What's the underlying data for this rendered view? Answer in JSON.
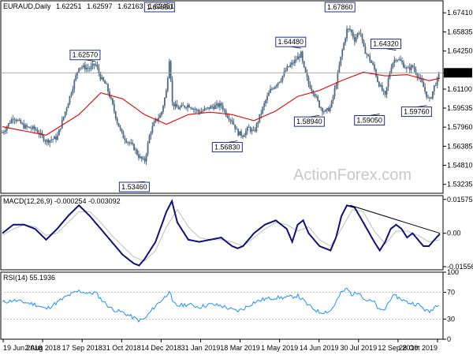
{
  "title": {
    "symbol": "EURAUD,Daily",
    "open": "1.62251",
    "high": "1.62597",
    "low": "1.62163",
    "close": "1.62451"
  },
  "watermark": "ActionForex.com",
  "colors": {
    "candle": "#4d6b86",
    "ema": "#e60000",
    "macd": "#10107a",
    "signal": "#bfbfbf",
    "rsi": "#1e90ff",
    "pricebox": "#000000"
  },
  "chart_data": [
    {
      "type": "candlestick",
      "panel": "price",
      "title": "EURAUD,Daily 1.62251 1.62597 1.62163 1.62451",
      "ylim": [
        1.525,
        1.684
      ],
      "y_ticks": [
        "1.67410",
        "1.65835",
        "1.64250",
        "1.62451",
        "1.61100",
        "1.59535",
        "1.57960",
        "1.56385",
        "1.54810",
        "1.53235"
      ],
      "x_ticks": [
        "19 Jun 2018",
        "2 Aug 2018",
        "17 Sep 2018",
        "31 Oct 2018",
        "14 Dec 2018",
        "31 Jan 2019",
        "18 Mar 2019",
        "1 May 2019",
        "14 Jun 2019",
        "30 Jul 2019",
        "12 Sep 2019",
        "28 Oct 2019"
      ],
      "last_price": "1.62451",
      "price_anchors": [
        [
          0,
          1.575
        ],
        [
          10,
          1.588
        ],
        [
          20,
          1.58
        ],
        [
          30,
          1.578
        ],
        [
          40,
          1.568
        ],
        [
          50,
          1.571
        ],
        [
          60,
          1.6
        ],
        [
          70,
          1.63
        ],
        [
          80,
          1.628
        ],
        [
          85,
          1.632
        ],
        [
          90,
          1.62
        ],
        [
          95,
          1.614
        ],
        [
          100,
          1.6
        ],
        [
          105,
          1.584
        ],
        [
          110,
          1.572
        ],
        [
          120,
          1.563
        ],
        [
          125,
          1.555
        ],
        [
          130,
          1.551
        ],
        [
          135,
          1.575
        ],
        [
          140,
          1.585
        ],
        [
          145,
          1.59
        ],
        [
          150,
          1.61
        ],
        [
          153,
          1.64
        ],
        [
          155,
          1.6
        ],
        [
          160,
          1.595
        ],
        [
          170,
          1.598
        ],
        [
          180,
          1.592
        ],
        [
          190,
          1.596
        ],
        [
          200,
          1.598
        ],
        [
          205,
          1.59
        ],
        [
          210,
          1.585
        ],
        [
          215,
          1.575
        ],
        [
          220,
          1.573
        ],
        [
          225,
          1.579
        ],
        [
          230,
          1.575
        ],
        [
          235,
          1.588
        ],
        [
          240,
          1.6
        ],
        [
          245,
          1.61
        ],
        [
          250,
          1.615
        ],
        [
          255,
          1.62
        ],
        [
          260,
          1.628
        ],
        [
          265,
          1.632
        ],
        [
          270,
          1.637
        ],
        [
          273,
          1.64
        ],
        [
          275,
          1.63
        ],
        [
          280,
          1.615
        ],
        [
          285,
          1.608
        ],
        [
          290,
          1.597
        ],
        [
          295,
          1.592
        ],
        [
          300,
          1.596
        ],
        [
          305,
          1.615
        ],
        [
          310,
          1.64
        ],
        [
          315,
          1.66
        ],
        [
          318,
          1.66
        ],
        [
          322,
          1.652
        ],
        [
          327,
          1.66
        ],
        [
          330,
          1.645
        ],
        [
          335,
          1.637
        ],
        [
          340,
          1.628
        ],
        [
          343,
          1.618
        ],
        [
          346,
          1.612
        ],
        [
          350,
          1.605
        ],
        [
          353,
          1.62
        ],
        [
          356,
          1.632
        ],
        [
          360,
          1.637
        ],
        [
          365,
          1.633
        ],
        [
          370,
          1.627
        ],
        [
          375,
          1.63
        ],
        [
          380,
          1.622
        ],
        [
          384,
          1.615
        ],
        [
          387,
          1.608
        ],
        [
          390,
          1.601
        ],
        [
          392,
          1.605
        ],
        [
          395,
          1.614
        ],
        [
          398,
          1.619
        ],
        [
          400,
          1.625
        ]
      ],
      "ema_anchors": [
        [
          0,
          1.58
        ],
        [
          40,
          1.573
        ],
        [
          70,
          1.59
        ],
        [
          90,
          1.608
        ],
        [
          110,
          1.603
        ],
        [
          130,
          1.59
        ],
        [
          150,
          1.582
        ],
        [
          170,
          1.59
        ],
        [
          190,
          1.592
        ],
        [
          210,
          1.59
        ],
        [
          230,
          1.585
        ],
        [
          250,
          1.593
        ],
        [
          270,
          1.605
        ],
        [
          290,
          1.61
        ],
        [
          310,
          1.618
        ],
        [
          330,
          1.625
        ],
        [
          350,
          1.622
        ],
        [
          370,
          1.623
        ],
        [
          390,
          1.618
        ],
        [
          400,
          1.62
        ]
      ],
      "annotations": [
        {
          "label": "1.62570",
          "x": 85,
          "y": 1.634
        },
        {
          "label": "1.53460",
          "x": 130,
          "y": 1.5346
        },
        {
          "label": "1.67650",
          "x": 153,
          "y": 1.6765
        },
        {
          "label": "1.56830",
          "x": 215,
          "y": 1.5683
        },
        {
          "label": "1.64480",
          "x": 273,
          "y": 1.6448
        },
        {
          "label": "1.58940",
          "x": 290,
          "y": 1.5894
        },
        {
          "label": "1.67860",
          "x": 318,
          "y": 1.6786
        },
        {
          "label": "1.59050",
          "x": 345,
          "y": 1.5905
        },
        {
          "label": "1.64320",
          "x": 360,
          "y": 1.6432
        },
        {
          "label": "1.59760",
          "x": 388,
          "y": 1.5976
        }
      ]
    },
    {
      "type": "line",
      "panel": "macd",
      "title": "MACD(12,26,9) -0.000254 -0.003092",
      "ylim": [
        -0.017,
        0.0175
      ],
      "y_ticks": [
        "0.01575",
        "0.00",
        "-0.015568"
      ],
      "macd_anchors": [
        [
          0,
          0.0
        ],
        [
          10,
          0.004
        ],
        [
          20,
          0.004
        ],
        [
          30,
          0.002
        ],
        [
          40,
          -0.003
        ],
        [
          50,
          0.002
        ],
        [
          60,
          0.008
        ],
        [
          70,
          0.013
        ],
        [
          80,
          0.008
        ],
        [
          90,
          0.002
        ],
        [
          100,
          -0.004
        ],
        [
          110,
          -0.01
        ],
        [
          120,
          -0.014
        ],
        [
          125,
          -0.015
        ],
        [
          130,
          -0.012
        ],
        [
          140,
          -0.004
        ],
        [
          150,
          0.01
        ],
        [
          155,
          0.015
        ],
        [
          160,
          0.005
        ],
        [
          170,
          -0.003
        ],
        [
          180,
          -0.004
        ],
        [
          190,
          -0.003
        ],
        [
          200,
          -0.002
        ],
        [
          210,
          -0.006
        ],
        [
          215,
          -0.007
        ],
        [
          220,
          -0.006
        ],
        [
          230,
          0.0
        ],
        [
          240,
          0.004
        ],
        [
          250,
          0.006
        ],
        [
          260,
          0.002
        ],
        [
          265,
          -0.004
        ],
        [
          270,
          0.004
        ],
        [
          275,
          0.006
        ],
        [
          280,
          0.0
        ],
        [
          290,
          -0.006
        ],
        [
          300,
          -0.008
        ],
        [
          305,
          -0.002
        ],
        [
          310,
          0.008
        ],
        [
          315,
          0.013
        ],
        [
          322,
          0.012
        ],
        [
          330,
          0.005
        ],
        [
          340,
          -0.004
        ],
        [
          345,
          -0.008
        ],
        [
          350,
          -0.004
        ],
        [
          355,
          0.002
        ],
        [
          360,
          0.004
        ],
        [
          365,
          0.002
        ],
        [
          370,
          -0.002
        ],
        [
          375,
          0.0
        ],
        [
          380,
          -0.003
        ],
        [
          385,
          -0.006
        ],
        [
          390,
          -0.006
        ],
        [
          395,
          -0.003
        ],
        [
          400,
          -0.0003
        ]
      ],
      "signal_anchors": [
        [
          0,
          -0.001
        ],
        [
          10,
          0.002
        ],
        [
          20,
          0.004
        ],
        [
          30,
          0.003
        ],
        [
          40,
          -0.001
        ],
        [
          50,
          0.0
        ],
        [
          60,
          0.005
        ],
        [
          70,
          0.01
        ],
        [
          80,
          0.01
        ],
        [
          90,
          0.005
        ],
        [
          100,
          -0.001
        ],
        [
          110,
          -0.006
        ],
        [
          120,
          -0.011
        ],
        [
          130,
          -0.013
        ],
        [
          140,
          -0.008
        ],
        [
          150,
          0.003
        ],
        [
          160,
          0.011
        ],
        [
          170,
          0.003
        ],
        [
          180,
          -0.002
        ],
        [
          190,
          -0.003
        ],
        [
          200,
          -0.003
        ],
        [
          210,
          -0.004
        ],
        [
          220,
          -0.006
        ],
        [
          230,
          -0.002
        ],
        [
          240,
          0.002
        ],
        [
          250,
          0.005
        ],
        [
          260,
          0.004
        ],
        [
          270,
          0.001
        ],
        [
          280,
          0.003
        ],
        [
          290,
          -0.003
        ],
        [
          300,
          -0.006
        ],
        [
          310,
          0.002
        ],
        [
          320,
          0.011
        ],
        [
          330,
          0.01
        ],
        [
          340,
          0.001
        ],
        [
          350,
          -0.005
        ],
        [
          360,
          0.001
        ],
        [
          370,
          0.001
        ],
        [
          380,
          -0.001
        ],
        [
          390,
          -0.004
        ],
        [
          400,
          -0.003
        ]
      ],
      "trendline": [
        [
          318,
          0.013
        ],
        [
          400,
          0.0
        ]
      ]
    },
    {
      "type": "line",
      "panel": "rsi",
      "title": "RSI(14) 55.1936",
      "ylim": [
        0,
        100
      ],
      "y_ticks": [
        "100",
        "70",
        "30",
        "0"
      ],
      "levels": [
        70,
        30
      ],
      "rsi_anchors": [
        [
          0,
          55
        ],
        [
          10,
          58
        ],
        [
          20,
          55
        ],
        [
          30,
          52
        ],
        [
          40,
          45
        ],
        [
          50,
          55
        ],
        [
          60,
          65
        ],
        [
          70,
          72
        ],
        [
          80,
          68
        ],
        [
          85,
          70
        ],
        [
          90,
          60
        ],
        [
          100,
          45
        ],
        [
          110,
          40
        ],
        [
          120,
          32
        ],
        [
          125,
          28
        ],
        [
          130,
          30
        ],
        [
          140,
          50
        ],
        [
          150,
          65
        ],
        [
          153,
          75
        ],
        [
          155,
          55
        ],
        [
          160,
          50
        ],
        [
          170,
          52
        ],
        [
          180,
          48
        ],
        [
          190,
          52
        ],
        [
          200,
          50
        ],
        [
          210,
          44
        ],
        [
          215,
          42
        ],
        [
          220,
          45
        ],
        [
          230,
          55
        ],
        [
          240,
          60
        ],
        [
          250,
          62
        ],
        [
          260,
          62
        ],
        [
          270,
          65
        ],
        [
          275,
          58
        ],
        [
          280,
          50
        ],
        [
          290,
          40
        ],
        [
          300,
          42
        ],
        [
          305,
          55
        ],
        [
          310,
          70
        ],
        [
          315,
          75
        ],
        [
          320,
          66
        ],
        [
          327,
          72
        ],
        [
          330,
          60
        ],
        [
          340,
          55
        ],
        [
          345,
          42
        ],
        [
          350,
          45
        ],
        [
          355,
          62
        ],
        [
          360,
          64
        ],
        [
          370,
          55
        ],
        [
          380,
          52
        ],
        [
          385,
          46
        ],
        [
          390,
          40
        ],
        [
          395,
          48
        ],
        [
          400,
          55
        ]
      ]
    }
  ]
}
